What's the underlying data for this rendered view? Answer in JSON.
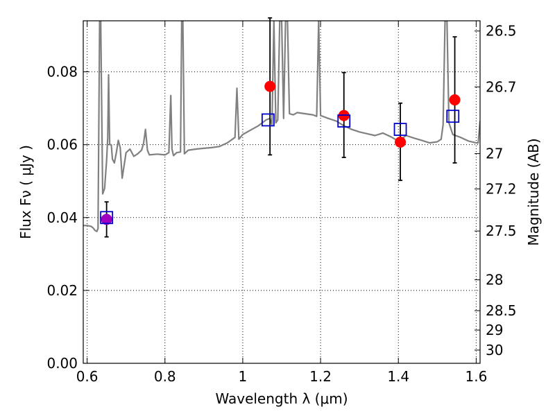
{
  "chart_data": {
    "type": "scatter",
    "xlabel": "Wavelength  λ (μm)",
    "ylabel": "Flux  Fν  ( μJy )",
    "y2label": "Magnitude (AB)",
    "xlim": [
      0.59,
      1.61
    ],
    "ylim": [
      0.0,
      0.094
    ],
    "x_ticks": [
      0.6,
      0.8,
      1.0,
      1.2,
      1.4,
      1.6
    ],
    "x_tick_labels": [
      "0.6",
      "0.8",
      "1",
      "1.2",
      "1.4",
      "1.6"
    ],
    "y_ticks": [
      0.0,
      0.02,
      0.04,
      0.06,
      0.08
    ],
    "y_tick_labels": [
      "0.00",
      "0.02",
      "0.04",
      "0.06",
      "0.08"
    ],
    "y2_tick_labels": [
      "26.5",
      "26.7",
      "27",
      "27.2",
      "27.5",
      "28",
      "28.5",
      "29",
      "30"
    ],
    "grid": true,
    "grid_style": "dotted",
    "colors": {
      "spectrum": "#808080",
      "observed": "#ff0000",
      "model": "#0000cc",
      "error": "#000000",
      "overlap": "#a000c0"
    },
    "spectrum": {
      "x": [
        0.59,
        0.6,
        0.61,
        0.615,
        0.62,
        0.625,
        0.628,
        0.632,
        0.635,
        0.64,
        0.645,
        0.65,
        0.653,
        0.655,
        0.658,
        0.662,
        0.665,
        0.67,
        0.675,
        0.68,
        0.685,
        0.69,
        0.7,
        0.71,
        0.72,
        0.73,
        0.74,
        0.745,
        0.75,
        0.755,
        0.76,
        0.78,
        0.8,
        0.81,
        0.815,
        0.818,
        0.822,
        0.83,
        0.84,
        0.843,
        0.846,
        0.85,
        0.86,
        0.88,
        0.9,
        0.92,
        0.94,
        0.96,
        0.98,
        0.985,
        0.99,
        1.0,
        1.02,
        1.04,
        1.05,
        1.06,
        1.07,
        1.075,
        1.08,
        1.085,
        1.09,
        1.095,
        1.1,
        1.105,
        1.11,
        1.115,
        1.12,
        1.13,
        1.14,
        1.16,
        1.18,
        1.19,
        1.195,
        1.2,
        1.22,
        1.24,
        1.26,
        1.28,
        1.3,
        1.32,
        1.34,
        1.36,
        1.38,
        1.4,
        1.42,
        1.44,
        1.46,
        1.48,
        1.5,
        1.51,
        1.515,
        1.52,
        1.525,
        1.53,
        1.54,
        1.56,
        1.58,
        1.6,
        1.605,
        1.61
      ],
      "y": [
        0.0378,
        0.0378,
        0.0376,
        0.0372,
        0.0365,
        0.0362,
        0.037,
        0.094,
        0.094,
        0.0465,
        0.048,
        0.0555,
        0.062,
        0.0792,
        0.06,
        0.06,
        0.056,
        0.055,
        0.0578,
        0.0612,
        0.0592,
        0.0508,
        0.0578,
        0.0588,
        0.0568,
        0.0575,
        0.0585,
        0.0603,
        0.0642,
        0.0585,
        0.0572,
        0.0574,
        0.0572,
        0.0578,
        0.0735,
        0.0588,
        0.057,
        0.0578,
        0.058,
        0.094,
        0.094,
        0.0575,
        0.0585,
        0.0588,
        0.059,
        0.0592,
        0.0595,
        0.0605,
        0.062,
        0.0755,
        0.0615,
        0.0628,
        0.064,
        0.0652,
        0.066,
        0.0668,
        0.0672,
        0.0655,
        0.094,
        0.066,
        0.0668,
        0.094,
        0.094,
        0.0672,
        0.094,
        0.094,
        0.0685,
        0.0682,
        0.0688,
        0.0685,
        0.0682,
        0.0678,
        0.094,
        0.068,
        0.0672,
        0.0665,
        0.0652,
        0.0642,
        0.0635,
        0.063,
        0.0625,
        0.0632,
        0.0622,
        0.061,
        0.0625,
        0.0618,
        0.0612,
        0.0605,
        0.0608,
        0.0615,
        0.0655,
        0.094,
        0.094,
        0.066,
        0.0628,
        0.062,
        0.061,
        0.0605,
        0.0605,
        0.0665
      ]
    },
    "model_points": {
      "marker": "open-square",
      "x": [
        0.65,
        1.065,
        1.26,
        1.405,
        1.54
      ],
      "y": [
        0.04,
        0.0668,
        0.0665,
        0.0642,
        0.0678
      ]
    },
    "observed_points": {
      "marker": "filled-circle",
      "x": [
        0.65,
        1.07,
        1.26,
        1.405,
        1.545
      ],
      "y": [
        0.0395,
        0.076,
        0.068,
        0.0607,
        0.0723
      ],
      "err_low": [
        0.0048,
        0.0188,
        0.0115,
        0.0105,
        0.0173
      ],
      "err_high": [
        0.0048,
        0.0188,
        0.0118,
        0.0107,
        0.0173
      ]
    }
  }
}
